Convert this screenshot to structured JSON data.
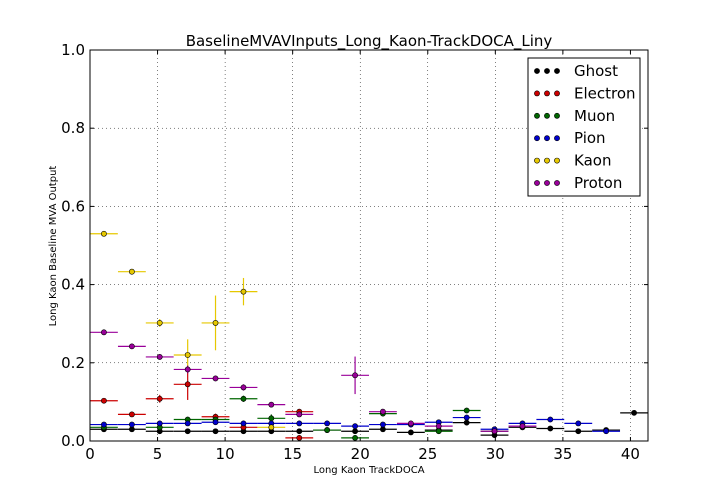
{
  "chart_data": {
    "type": "scatter",
    "title": "BaselineMVAVInputs_Long_Kaon-TrackDOCA_Liny",
    "xlabel": "Long Kaon TrackDOCA",
    "ylabel": "Long Kaon Baseline MVA Output",
    "xlim": [
      0,
      41.3
    ],
    "ylim": [
      0,
      1.0
    ],
    "x_ticks": [
      "0",
      "5",
      "10",
      "15",
      "20",
      "25",
      "30",
      "35",
      "40"
    ],
    "y_ticks": [
      "0.0",
      "0.2",
      "0.4",
      "0.6",
      "0.8",
      "1.0"
    ],
    "grid": true,
    "legend_position": "top-right",
    "bin_halfwidth": 1.03,
    "series": [
      {
        "name": "Ghost",
        "color": "#000000",
        "ecolor": "#000000",
        "points": [
          {
            "x": 1.03,
            "y": 0.03,
            "err": 0.003
          },
          {
            "x": 3.1,
            "y": 0.03,
            "err": 0.003
          },
          {
            "x": 5.16,
            "y": 0.025,
            "err": 0.003
          },
          {
            "x": 7.23,
            "y": 0.025,
            "err": 0.003
          },
          {
            "x": 9.29,
            "y": 0.025,
            "err": 0.003
          },
          {
            "x": 11.36,
            "y": 0.025,
            "err": 0.003
          },
          {
            "x": 13.42,
            "y": 0.025,
            "err": 0.003
          },
          {
            "x": 15.49,
            "y": 0.025,
            "err": 0.003
          },
          {
            "x": 17.55,
            "y": 0.028,
            "err": 0.003
          },
          {
            "x": 19.62,
            "y": 0.025,
            "err": 0.003
          },
          {
            "x": 21.68,
            "y": 0.03,
            "err": 0.003
          },
          {
            "x": 23.75,
            "y": 0.022,
            "err": 0.003
          },
          {
            "x": 25.81,
            "y": 0.028,
            "err": 0.003
          },
          {
            "x": 27.88,
            "y": 0.047,
            "err": 0.004
          },
          {
            "x": 29.94,
            "y": 0.015,
            "err": 0.003
          },
          {
            "x": 32.01,
            "y": 0.035,
            "err": 0.003
          },
          {
            "x": 34.07,
            "y": 0.032,
            "err": 0.003
          },
          {
            "x": 36.14,
            "y": 0.025,
            "err": 0.003
          },
          {
            "x": 38.2,
            "y": 0.028,
            "err": 0.003
          },
          {
            "x": 40.27,
            "y": 0.072,
            "err": 0.005
          }
        ]
      },
      {
        "name": "Electron",
        "color": "#cc0000",
        "ecolor": "#cc0000",
        "points": [
          {
            "x": 1.03,
            "y": 0.103,
            "err": 0.004
          },
          {
            "x": 3.1,
            "y": 0.068,
            "err": 0.004
          },
          {
            "x": 5.16,
            "y": 0.108,
            "err": 0.01
          },
          {
            "x": 7.23,
            "y": 0.145,
            "err": 0.04
          },
          {
            "x": 9.29,
            "y": 0.062,
            "err": 0.008
          },
          {
            "x": 11.36,
            "y": 0.035,
            "err": 0.005
          },
          {
            "x": 15.49,
            "y": 0.075,
            "err": 0.006
          },
          {
            "x": 15.49,
            "y": 0.008,
            "err": 0.002
          }
        ]
      },
      {
        "name": "Muon",
        "color": "#006600",
        "ecolor": "#006600",
        "points": [
          {
            "x": 1.03,
            "y": 0.035,
            "err": 0.003
          },
          {
            "x": 5.16,
            "y": 0.035,
            "err": 0.003
          },
          {
            "x": 7.23,
            "y": 0.055,
            "err": 0.004
          },
          {
            "x": 9.29,
            "y": 0.055,
            "err": 0.004
          },
          {
            "x": 11.36,
            "y": 0.108,
            "err": 0.008
          },
          {
            "x": 13.42,
            "y": 0.058,
            "err": 0.01
          },
          {
            "x": 17.55,
            "y": 0.028,
            "err": 0.003
          },
          {
            "x": 19.62,
            "y": 0.008,
            "err": 0.004
          },
          {
            "x": 21.68,
            "y": 0.07,
            "err": 0.005
          },
          {
            "x": 25.81,
            "y": 0.025,
            "err": 0.003
          },
          {
            "x": 27.88,
            "y": 0.078,
            "err": 0.005
          },
          {
            "x": 29.94,
            "y": 0.025,
            "err": 0.003
          }
        ]
      },
      {
        "name": "Pion",
        "color": "#0000cc",
        "ecolor": "#0000cc",
        "points": [
          {
            "x": 1.03,
            "y": 0.042,
            "err": 0.003
          },
          {
            "x": 3.1,
            "y": 0.042,
            "err": 0.003
          },
          {
            "x": 5.16,
            "y": 0.045,
            "err": 0.003
          },
          {
            "x": 7.23,
            "y": 0.045,
            "err": 0.003
          },
          {
            "x": 9.29,
            "y": 0.048,
            "err": 0.003
          },
          {
            "x": 11.36,
            "y": 0.045,
            "err": 0.003
          },
          {
            "x": 13.42,
            "y": 0.045,
            "err": 0.003
          },
          {
            "x": 15.49,
            "y": 0.045,
            "err": 0.003
          },
          {
            "x": 17.55,
            "y": 0.045,
            "err": 0.003
          },
          {
            "x": 19.62,
            "y": 0.038,
            "err": 0.003
          },
          {
            "x": 21.68,
            "y": 0.042,
            "err": 0.003
          },
          {
            "x": 23.75,
            "y": 0.042,
            "err": 0.003
          },
          {
            "x": 25.81,
            "y": 0.048,
            "err": 0.003
          },
          {
            "x": 27.88,
            "y": 0.06,
            "err": 0.004
          },
          {
            "x": 29.94,
            "y": 0.03,
            "err": 0.003
          },
          {
            "x": 32.01,
            "y": 0.045,
            "err": 0.003
          },
          {
            "x": 34.07,
            "y": 0.055,
            "err": 0.004
          },
          {
            "x": 36.14,
            "y": 0.045,
            "err": 0.003
          },
          {
            "x": 38.2,
            "y": 0.025,
            "err": 0.003
          }
        ]
      },
      {
        "name": "Kaon",
        "color": "#e6c800",
        "ecolor": "#e6c800",
        "points": [
          {
            "x": 1.03,
            "y": 0.53,
            "err": 0.004
          },
          {
            "x": 3.1,
            "y": 0.433,
            "err": 0.005
          },
          {
            "x": 5.16,
            "y": 0.302,
            "err": 0.01
          },
          {
            "x": 7.23,
            "y": 0.22,
            "err": 0.04
          },
          {
            "x": 9.29,
            "y": 0.302,
            "err": 0.07
          },
          {
            "x": 11.36,
            "y": 0.382,
            "err": 0.035
          },
          {
            "x": 13.42,
            "y": 0.035,
            "err": 0.005
          }
        ]
      },
      {
        "name": "Proton",
        "color": "#990099",
        "ecolor": "#990099",
        "points": [
          {
            "x": 1.03,
            "y": 0.278,
            "err": 0.003
          },
          {
            "x": 3.1,
            "y": 0.242,
            "err": 0.003
          },
          {
            "x": 5.16,
            "y": 0.215,
            "err": 0.004
          },
          {
            "x": 7.23,
            "y": 0.183,
            "err": 0.01
          },
          {
            "x": 9.29,
            "y": 0.16,
            "err": 0.004
          },
          {
            "x": 11.36,
            "y": 0.137,
            "err": 0.008
          },
          {
            "x": 13.42,
            "y": 0.093,
            "err": 0.004
          },
          {
            "x": 15.49,
            "y": 0.068,
            "err": 0.004
          },
          {
            "x": 19.62,
            "y": 0.168,
            "err": 0.048
          },
          {
            "x": 21.68,
            "y": 0.075,
            "err": 0.004
          },
          {
            "x": 23.75,
            "y": 0.045,
            "err": 0.003
          },
          {
            "x": 25.81,
            "y": 0.038,
            "err": 0.003
          },
          {
            "x": 29.94,
            "y": 0.025,
            "err": 0.003
          },
          {
            "x": 32.01,
            "y": 0.038,
            "err": 0.003
          }
        ]
      }
    ]
  }
}
